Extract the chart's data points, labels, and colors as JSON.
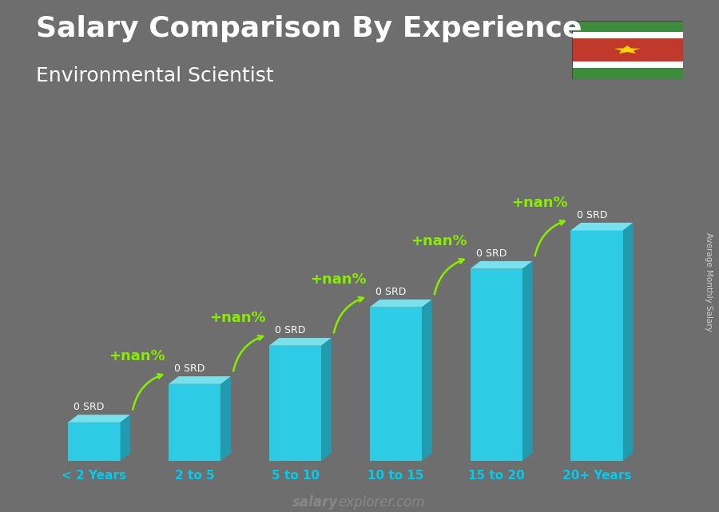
{
  "title": "Salary Comparison By Experience",
  "subtitle": "Environmental Scientist",
  "categories": [
    "< 2 Years",
    "2 to 5",
    "5 to 10",
    "10 to 15",
    "15 to 20",
    "20+ Years"
  ],
  "values": [
    1,
    2,
    3,
    4,
    5,
    6
  ],
  "bar_color_face": "#29d4ee",
  "bar_color_top": "#7aeaf8",
  "bar_color_side": "#1a9fb5",
  "salary_labels": [
    "0 SRD",
    "0 SRD",
    "0 SRD",
    "0 SRD",
    "0 SRD",
    "0 SRD"
  ],
  "pct_labels": [
    "+nan%",
    "+nan%",
    "+nan%",
    "+nan%",
    "+nan%"
  ],
  "title_fontsize": 26,
  "subtitle_fontsize": 18,
  "background_color": "#6e6e6e",
  "ylabel_text": "Average Monthly Salary",
  "footer_bold": "salary",
  "footer_normal": "explorer.com",
  "flag_stripe_colors": [
    "#3d8c3d",
    "#ffffff",
    "#c0392b",
    "#ffffff",
    "#3d8c3d"
  ],
  "flag_stripe_heights": [
    1.0,
    0.5,
    2.0,
    0.5,
    1.0
  ],
  "flag_star_color": "#ffd700",
  "title_color": "#ffffff",
  "subtitle_color": "#ffffff",
  "label_color": "#ffffff",
  "pct_color": "#88ee00",
  "xlabel_color": "#00ccee",
  "footer_color": "#aaaaaa",
  "ylabel_color": "#cccccc"
}
